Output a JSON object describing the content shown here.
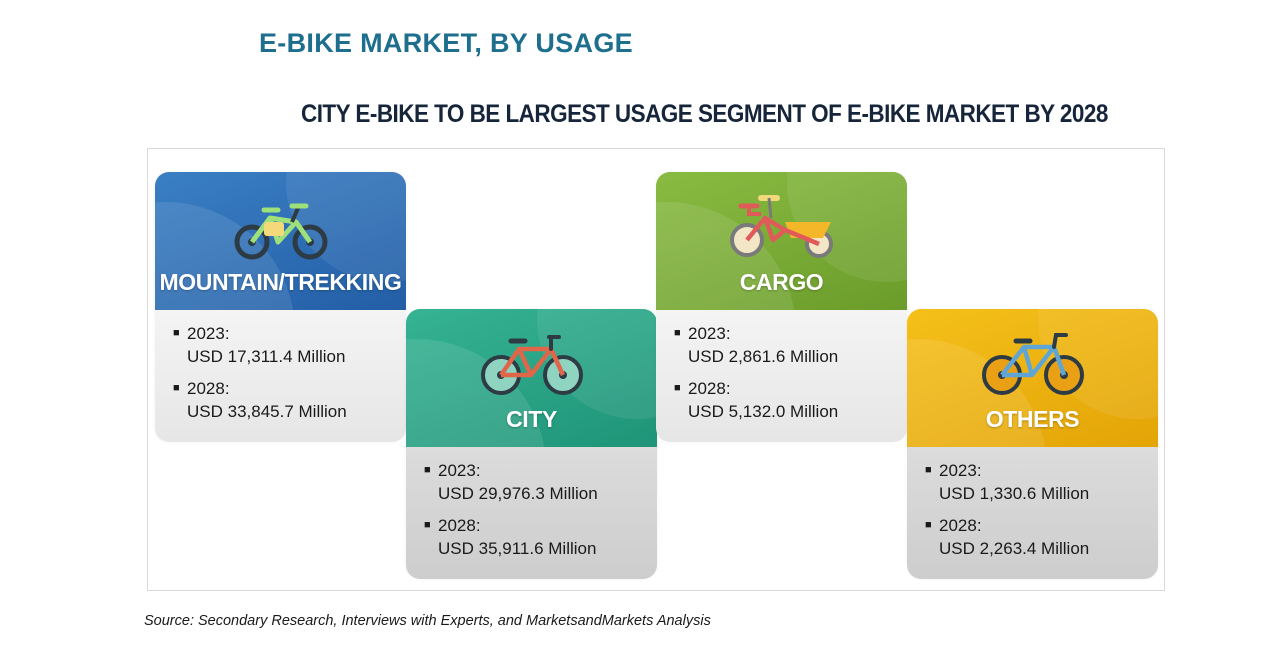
{
  "heading": "E-BIKE MARKET, BY USAGE",
  "chart_data": {
    "type": "table",
    "title": "CITY E-BIKE TO BE LARGEST USAGE SEGMENT OF E-BIKE MARKET BY 2028",
    "columns": [
      "2023:",
      "2028:"
    ],
    "segments": [
      {
        "name": "MOUNTAIN/TREKKING",
        "color": "#2e72b8",
        "icon": "mountain-bike-icon",
        "values": [
          {
            "year": "2023:",
            "value": "USD 17,311.4 Million"
          },
          {
            "year": "2028:",
            "value": "USD 33,845.7 Million"
          }
        ]
      },
      {
        "name": "CITY",
        "color": "#2ba58a",
        "icon": "city-bike-icon",
        "values": [
          {
            "year": "2023:",
            "value": "USD 29,976.3 Million"
          },
          {
            "year": "2028:",
            "value": "USD 35,911.6 Million"
          }
        ]
      },
      {
        "name": "CARGO",
        "color": "#7cad35",
        "icon": "cargo-bike-icon",
        "values": [
          {
            "year": "2023:",
            "value": "USD 2,861.6 Million"
          },
          {
            "year": "2028:",
            "value": "USD 5,132.0 Million"
          }
        ]
      },
      {
        "name": "OTHERS",
        "color": "#f0b30a",
        "icon": "other-bike-icon",
        "values": [
          {
            "year": "2023:",
            "value": "USD 1,330.6 Million"
          },
          {
            "year": "2028:",
            "value": "USD 2,263.4 Million"
          }
        ]
      }
    ]
  },
  "source": "Source: Secondary Research, Interviews with Experts, and MarketsandMarkets Analysis",
  "bullet": "■"
}
